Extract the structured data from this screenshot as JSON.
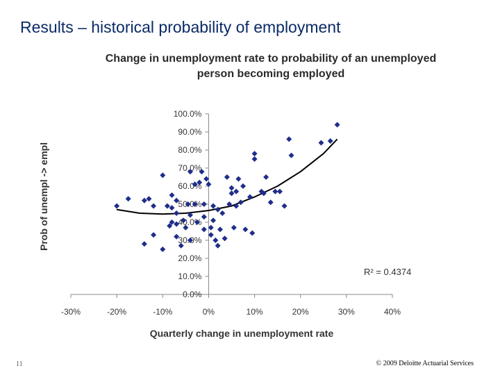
{
  "slide": {
    "title": "Results – historical probability of employment",
    "number": "11",
    "copyright": "© 2009 Deloitte Actuarial Services"
  },
  "chart_data": {
    "type": "scatter",
    "title_lines": [
      "Change in unemployment rate to probability of an unemployed",
      "person becoming employed"
    ],
    "xlabel": "Quarterly change in unemployment rate",
    "ylabel": "Prob of unempl -> empl",
    "xlim": [
      -0.3,
      0.4
    ],
    "ylim": [
      0,
      1.0
    ],
    "x_ticks": [
      -0.3,
      -0.2,
      -0.1,
      0.0,
      0.1,
      0.2,
      0.3,
      0.4
    ],
    "x_tick_labels": [
      "-30%",
      "-20%",
      "-10%",
      "0%",
      "10%",
      "20%",
      "30%",
      "40%"
    ],
    "y_ticks": [
      0,
      0.1,
      0.2,
      0.3,
      0.4,
      0.5,
      0.6,
      0.7,
      0.8,
      0.9,
      1.0
    ],
    "y_tick_labels": [
      "0.0%",
      "10.0%",
      "20.0%",
      "30.0%",
      "40.0%",
      "50.0%",
      "60.0%",
      "70.0%",
      "80.0%",
      "90.0%",
      "100.0%"
    ],
    "grid": false,
    "marker_color": "#1f2d8a",
    "trendline": {
      "type": "polynomial",
      "color": "#000000",
      "annotation": "R² = 0.4374",
      "points": [
        [
          -0.2,
          0.47
        ],
        [
          -0.15,
          0.45
        ],
        [
          -0.1,
          0.445
        ],
        [
          -0.05,
          0.45
        ],
        [
          0.0,
          0.465
        ],
        [
          0.05,
          0.49
        ],
        [
          0.1,
          0.54
        ],
        [
          0.15,
          0.6
        ],
        [
          0.2,
          0.68
        ],
        [
          0.25,
          0.78
        ],
        [
          0.28,
          0.86
        ]
      ]
    },
    "points": [
      [
        -0.2,
        0.49
      ],
      [
        -0.175,
        0.53
      ],
      [
        -0.14,
        0.52
      ],
      [
        -0.14,
        0.28
      ],
      [
        -0.13,
        0.53
      ],
      [
        -0.12,
        0.49
      ],
      [
        -0.12,
        0.33
      ],
      [
        -0.1,
        0.66
      ],
      [
        -0.1,
        0.25
      ],
      [
        -0.09,
        0.49
      ],
      [
        -0.085,
        0.38
      ],
      [
        -0.08,
        0.55
      ],
      [
        -0.08,
        0.48
      ],
      [
        -0.08,
        0.4
      ],
      [
        -0.07,
        0.52
      ],
      [
        -0.07,
        0.45
      ],
      [
        -0.07,
        0.39
      ],
      [
        -0.07,
        0.32
      ],
      [
        -0.06,
        0.27
      ],
      [
        -0.055,
        0.41
      ],
      [
        -0.05,
        0.37
      ],
      [
        -0.045,
        0.5
      ],
      [
        -0.04,
        0.68
      ],
      [
        -0.04,
        0.44
      ],
      [
        -0.04,
        0.3
      ],
      [
        -0.03,
        0.61
      ],
      [
        -0.03,
        0.5
      ],
      [
        -0.025,
        0.4
      ],
      [
        -0.02,
        0.62
      ],
      [
        -0.015,
        0.68
      ],
      [
        -0.01,
        0.5
      ],
      [
        -0.01,
        0.43
      ],
      [
        -0.01,
        0.36
      ],
      [
        -0.005,
        0.64
      ],
      [
        0.0,
        0.61
      ],
      [
        0.005,
        0.37
      ],
      [
        0.005,
        0.33
      ],
      [
        0.01,
        0.49
      ],
      [
        0.01,
        0.41
      ],
      [
        0.015,
        0.3
      ],
      [
        0.02,
        0.27
      ],
      [
        0.02,
        0.47
      ],
      [
        0.025,
        0.36
      ],
      [
        0.03,
        0.45
      ],
      [
        0.035,
        0.31
      ],
      [
        0.04,
        0.65
      ],
      [
        0.045,
        0.5
      ],
      [
        0.05,
        0.59
      ],
      [
        0.05,
        0.56
      ],
      [
        0.055,
        0.37
      ],
      [
        0.06,
        0.57
      ],
      [
        0.06,
        0.49
      ],
      [
        0.065,
        0.64
      ],
      [
        0.07,
        0.51
      ],
      [
        0.075,
        0.6
      ],
      [
        0.08,
        0.36
      ],
      [
        0.09,
        0.54
      ],
      [
        0.095,
        0.34
      ],
      [
        0.1,
        0.78
      ],
      [
        0.1,
        0.75
      ],
      [
        0.115,
        0.57
      ],
      [
        0.12,
        0.56
      ],
      [
        0.125,
        0.65
      ],
      [
        0.135,
        0.51
      ],
      [
        0.145,
        0.57
      ],
      [
        0.155,
        0.57
      ],
      [
        0.165,
        0.49
      ],
      [
        0.175,
        0.86
      ],
      [
        0.18,
        0.77
      ],
      [
        0.245,
        0.84
      ],
      [
        0.265,
        0.85
      ],
      [
        0.28,
        0.94
      ]
    ]
  }
}
